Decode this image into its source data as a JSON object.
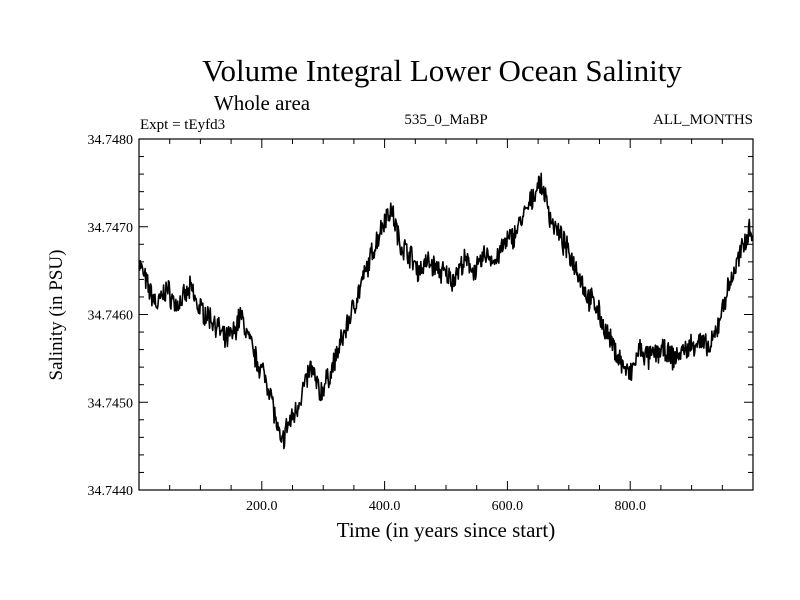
{
  "chart_data": {
    "type": "line",
    "title": "Volume Integral Lower Ocean Salinity",
    "subtitle": "Whole area",
    "left_label": "Expt = tEyfd3",
    "center_label": "535_0_MaBP",
    "right_label": "ALL_MONTHS",
    "xlabel": "Time (in years since start)",
    "ylabel": "Salinity (in PSU)",
    "xlim": [
      0,
      1000
    ],
    "ylim": [
      34.744,
      34.748
    ],
    "x_ticks": [
      200,
      400,
      600,
      800
    ],
    "x_tick_labels": [
      "200.0",
      "400.0",
      "600.0",
      "800.0"
    ],
    "y_ticks": [
      34.744,
      34.745,
      34.746,
      34.747,
      34.748
    ],
    "y_tick_labels": [
      "34.7440",
      "34.7450",
      "34.7460",
      "34.7470",
      "34.7480"
    ],
    "grid": false,
    "series": [
      {
        "name": "salinity",
        "x": [
          0,
          15,
          30,
          45,
          60,
          75,
          85,
          95,
          110,
          125,
          140,
          155,
          165,
          175,
          190,
          205,
          215,
          225,
          232,
          240,
          255,
          270,
          280,
          295,
          310,
          325,
          340,
          355,
          370,
          385,
          400,
          410,
          415,
          425,
          440,
          455,
          470,
          490,
          510,
          530,
          550,
          565,
          580,
          595,
          610,
          625,
          640,
          650,
          660,
          670,
          685,
          700,
          715,
          730,
          745,
          760,
          775,
          790,
          800,
          815,
          830,
          850,
          870,
          890,
          910,
          930,
          940,
          955,
          970,
          985,
          995,
          1000
        ],
        "y": [
          34.7466,
          34.7463,
          34.7461,
          34.7463,
          34.7461,
          34.7462,
          34.7463,
          34.7461,
          34.746,
          34.7459,
          34.7457,
          34.7458,
          34.746,
          34.7458,
          34.7455,
          34.7453,
          34.7451,
          34.7447,
          34.7445,
          34.7447,
          34.7449,
          34.7452,
          34.7454,
          34.7451,
          34.7453,
          34.7456,
          34.7459,
          34.7462,
          34.7465,
          34.7468,
          34.7471,
          34.7472,
          34.7471,
          34.7468,
          34.7467,
          34.7465,
          34.7466,
          34.7465,
          34.7464,
          34.7466,
          34.7465,
          34.7467,
          34.7466,
          34.7468,
          34.7469,
          34.7471,
          34.7473,
          34.7475,
          34.7474,
          34.7471,
          34.7469,
          34.7467,
          34.7465,
          34.7462,
          34.7461,
          34.7458,
          34.7456,
          34.7454,
          34.7453,
          34.7456,
          34.7455,
          34.7456,
          34.7455,
          34.7456,
          34.7457,
          34.7456,
          34.7458,
          34.7462,
          34.7465,
          34.7468,
          34.747,
          34.7469
        ]
      }
    ]
  }
}
